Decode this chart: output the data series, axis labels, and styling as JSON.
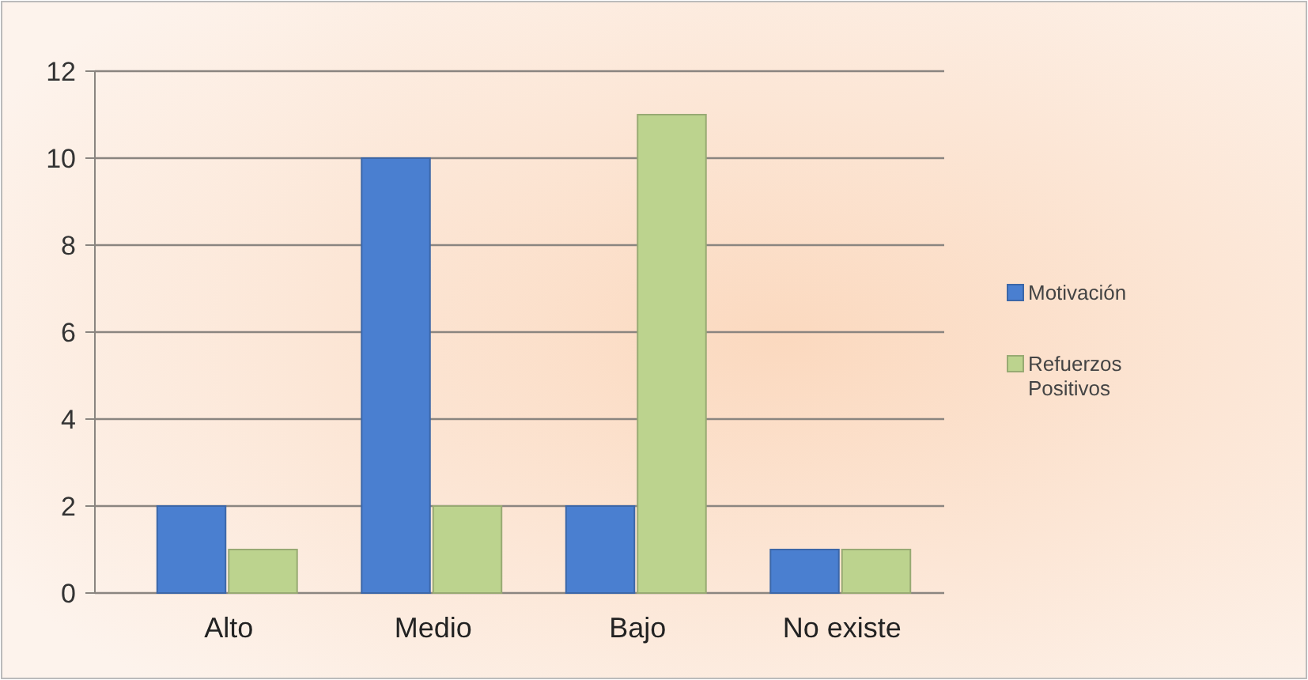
{
  "chart_data": {
    "type": "bar",
    "categories": [
      "Alto",
      "Medio",
      "Bajo",
      "No existe"
    ],
    "series": [
      {
        "name": "Motivación",
        "color": "#4a7fd0",
        "values": [
          2,
          10,
          2,
          1
        ]
      },
      {
        "name": "Refuerzos Positivos",
        "color": "#bcd38e",
        "values": [
          1,
          2,
          11,
          1
        ]
      }
    ],
    "ylim": [
      0,
      12
    ],
    "yticks": [
      0,
      2,
      4,
      6,
      8,
      10,
      12
    ],
    "grid": "y",
    "legend": "right"
  }
}
